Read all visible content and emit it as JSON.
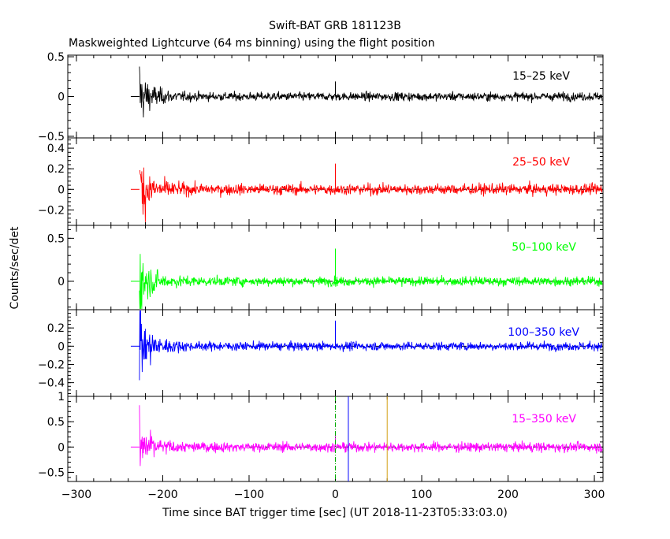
{
  "chart_data": {
    "type": "line",
    "title": "Swift-BAT GRB 181123B",
    "subtitle": "Maskweighted Lightcurve (64 ms binning) using the flight position",
    "xlabel": "Time since BAT trigger time [sec] (UT 2018-11-23T05:33:03.0)",
    "ylabel": "Counts/sec/det",
    "xlim": [
      -310,
      310
    ],
    "xticks": [
      -300,
      -200,
      -100,
      0,
      100,
      200,
      300
    ],
    "xtick_labels": [
      "−300",
      "−200",
      "−100",
      "0",
      "100",
      "200",
      "300"
    ],
    "data_start": -227,
    "panels": [
      {
        "band": "15–25 keV",
        "color": "#000000",
        "ylim": [
          -0.52,
          0.52
        ],
        "yticks": [
          -0.5,
          0,
          0.5
        ],
        "ytick_labels": [
          "−0.5",
          "0",
          "0.5"
        ],
        "noise_initial": 0.3,
        "noise_floor": 0.045,
        "spike_value": 0.19,
        "dashed_zero": false
      },
      {
        "band": "25–50 keV",
        "color": "#ff0000",
        "ylim": [
          -0.35,
          0.5
        ],
        "yticks": [
          -0.2,
          0,
          0.2,
          0.4
        ],
        "ytick_labels": [
          "−0.2",
          "0",
          "0.2",
          "0.4"
        ],
        "noise_initial": 0.3,
        "noise_floor": 0.045,
        "spike_value": 0.25,
        "dashed_zero": true
      },
      {
        "band": "50–100 keV",
        "color": "#00ff00",
        "ylim": [
          -0.33,
          0.65
        ],
        "yticks": [
          0,
          0.5
        ],
        "ytick_labels": [
          "0",
          "0.5"
        ],
        "noise_initial": 0.3,
        "noise_floor": 0.045,
        "spike_value": 0.38,
        "dashed_zero": true
      },
      {
        "band": "100–350 keV",
        "color": "#0000ff",
        "ylim": [
          -0.55,
          0.4
        ],
        "yticks": [
          -0.4,
          -0.2,
          0,
          0.2
        ],
        "ytick_labels": [
          "−0.4",
          "−0.2",
          "0",
          "0.2"
        ],
        "noise_initial": 0.33,
        "noise_floor": 0.04,
        "spike_value": 0.28,
        "dashed_zero": true
      },
      {
        "band": "15–350 keV",
        "color": "#ff00ff",
        "ylim": [
          -0.68,
          1.0
        ],
        "yticks": [
          -0.5,
          0,
          0.5,
          1
        ],
        "ytick_labels": [
          "−0.5",
          "0",
          "0.5",
          "1"
        ],
        "noise_initial": 0.45,
        "noise_floor": 0.08,
        "spike_value": 0.3,
        "dashed_zero": true
      }
    ],
    "marker_lines": [
      {
        "x": 0,
        "color": "#00aa00",
        "style": "dash-dot"
      },
      {
        "x": 15,
        "color": "#0000ff",
        "style": "solid"
      },
      {
        "x": 60,
        "color": "#d4a017",
        "style": "solid"
      }
    ]
  }
}
